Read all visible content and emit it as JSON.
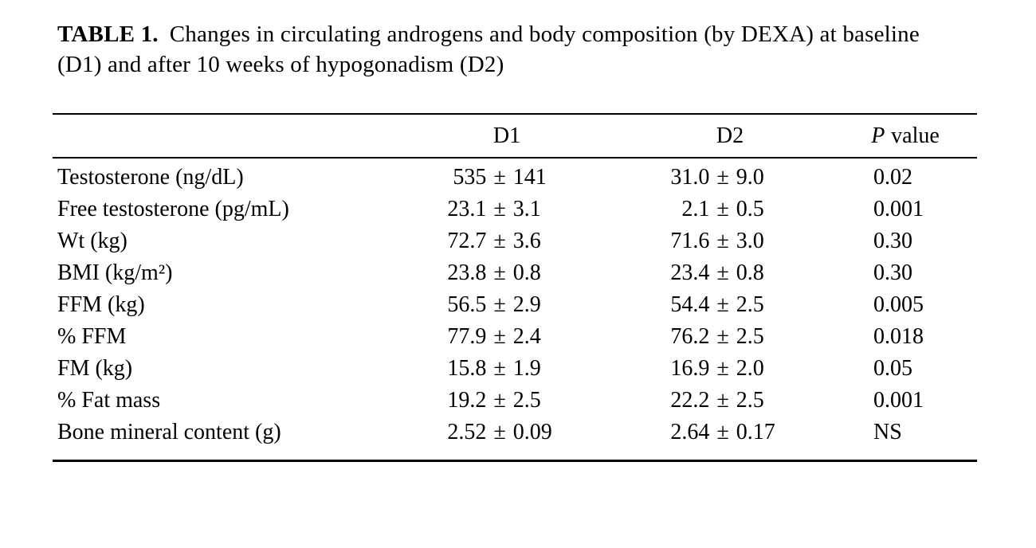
{
  "caption": {
    "label": "TABLE 1.",
    "text": "Changes in circulating androgens and body composition (by DEXA) at baseline (D1) and after 10 weeks of hypogonadism (D2)"
  },
  "table": {
    "pm": "±",
    "headers": {
      "d1": "D1",
      "d2": "D2",
      "p_prefix": "P",
      "p_suffix": "value"
    },
    "rows": [
      {
        "label": "Testosterone (ng/dL)",
        "d1_mean": "535",
        "d1_sd": "141",
        "d2_mean": "31.0",
        "d2_sd": "9.0",
        "p": "0.02"
      },
      {
        "label": "Free testosterone (pg/mL)",
        "d1_mean": "23.1",
        "d1_sd": "3.1",
        "d2_mean": "2.1",
        "d2_sd": "0.5",
        "p": "0.001"
      },
      {
        "label": "Wt (kg)",
        "d1_mean": "72.7",
        "d1_sd": "3.6",
        "d2_mean": "71.6",
        "d2_sd": "3.0",
        "p": "0.30"
      },
      {
        "label": "BMI (kg/m²)",
        "d1_mean": "23.8",
        "d1_sd": "0.8",
        "d2_mean": "23.4",
        "d2_sd": "0.8",
        "p": "0.30"
      },
      {
        "label": "FFM (kg)",
        "d1_mean": "56.5",
        "d1_sd": "2.9",
        "d2_mean": "54.4",
        "d2_sd": "2.5",
        "p": "0.005"
      },
      {
        "label": "% FFM",
        "d1_mean": "77.9",
        "d1_sd": "2.4",
        "d2_mean": "76.2",
        "d2_sd": "2.5",
        "p": "0.018"
      },
      {
        "label": "FM (kg)",
        "d1_mean": "15.8",
        "d1_sd": "1.9",
        "d2_mean": "16.9",
        "d2_sd": "2.0",
        "p": "0.05"
      },
      {
        "label": "% Fat mass",
        "d1_mean": "19.2",
        "d1_sd": "2.5",
        "d2_mean": "22.2",
        "d2_sd": "2.5",
        "p": "0.001"
      },
      {
        "label": "Bone mineral content (g)",
        "d1_mean": "2.52",
        "d1_sd": "0.09",
        "d2_mean": "2.64",
        "d2_sd": "0.17",
        "p": "NS"
      }
    ]
  }
}
